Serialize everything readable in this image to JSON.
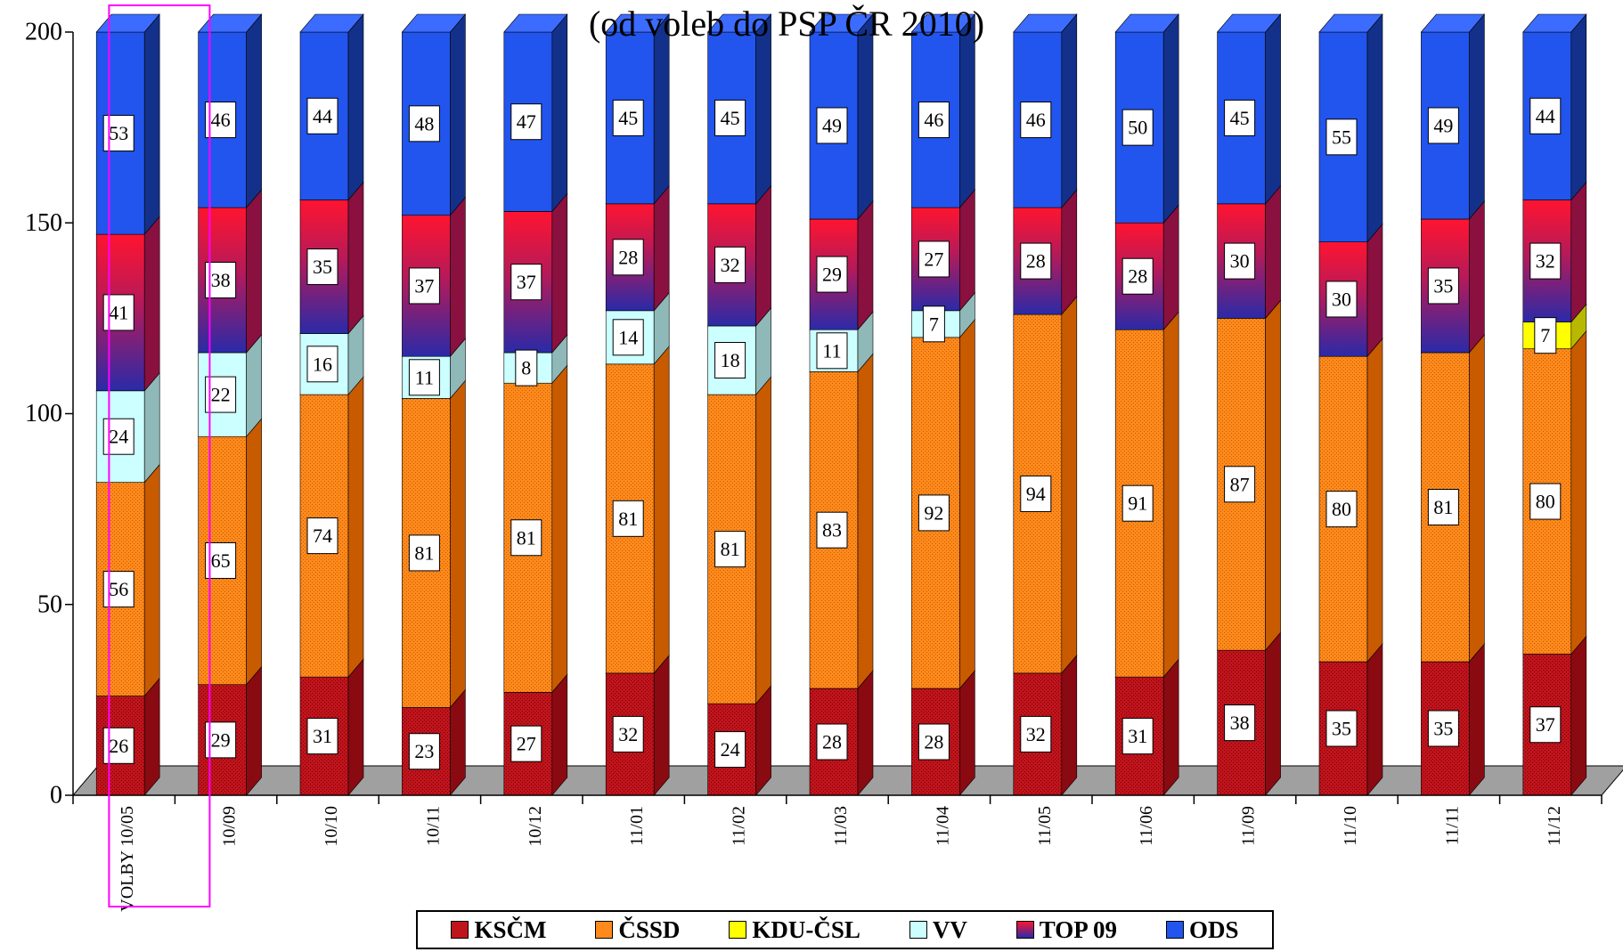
{
  "chart_data": {
    "type": "bar",
    "stacked": true,
    "three_d": true,
    "subtitle": "(od voleb do PSP ČR 2010)",
    "ylim": [
      0,
      200
    ],
    "yticks": [
      0,
      50,
      100,
      150,
      200
    ],
    "categories": [
      "VOLBY 10/05",
      "10/09",
      "10/10",
      "10/11",
      "10/12",
      "11/01",
      "11/02",
      "11/03",
      "11/04",
      "11/05",
      "11/06",
      "11/09",
      "11/10",
      "11/11",
      "11/12"
    ],
    "series": [
      {
        "name": "KSČM",
        "color": "#c0141c",
        "values": [
          26,
          29,
          31,
          23,
          27,
          32,
          24,
          28,
          28,
          32,
          31,
          38,
          35,
          35,
          37
        ]
      },
      {
        "name": "ČSSD",
        "color": "#ff8a1c",
        "values": [
          56,
          65,
          74,
          81,
          81,
          81,
          81,
          83,
          92,
          94,
          91,
          87,
          80,
          81,
          80
        ]
      },
      {
        "name": "KDU-ČSL",
        "color": "#ffff00",
        "values": [
          0,
          0,
          0,
          0,
          0,
          0,
          0,
          0,
          0,
          0,
          0,
          0,
          0,
          0,
          7
        ]
      },
      {
        "name": "VV",
        "color": "#ccffff",
        "values": [
          24,
          22,
          16,
          11,
          8,
          14,
          18,
          11,
          7,
          0,
          0,
          0,
          0,
          0,
          0
        ]
      },
      {
        "name": "TOP 09",
        "color": "#e8103c",
        "values": [
          41,
          38,
          35,
          37,
          37,
          28,
          32,
          29,
          27,
          28,
          28,
          30,
          30,
          35,
          32
        ]
      },
      {
        "name": "ODS",
        "color": "#2255ee",
        "values": [
          53,
          46,
          44,
          48,
          47,
          45,
          45,
          49,
          46,
          46,
          50,
          45,
          55,
          49,
          44
        ]
      }
    ],
    "highlighted_category": "10/09",
    "highlight_color": "#ff00ff",
    "legend": {
      "placement": "bottom"
    }
  }
}
